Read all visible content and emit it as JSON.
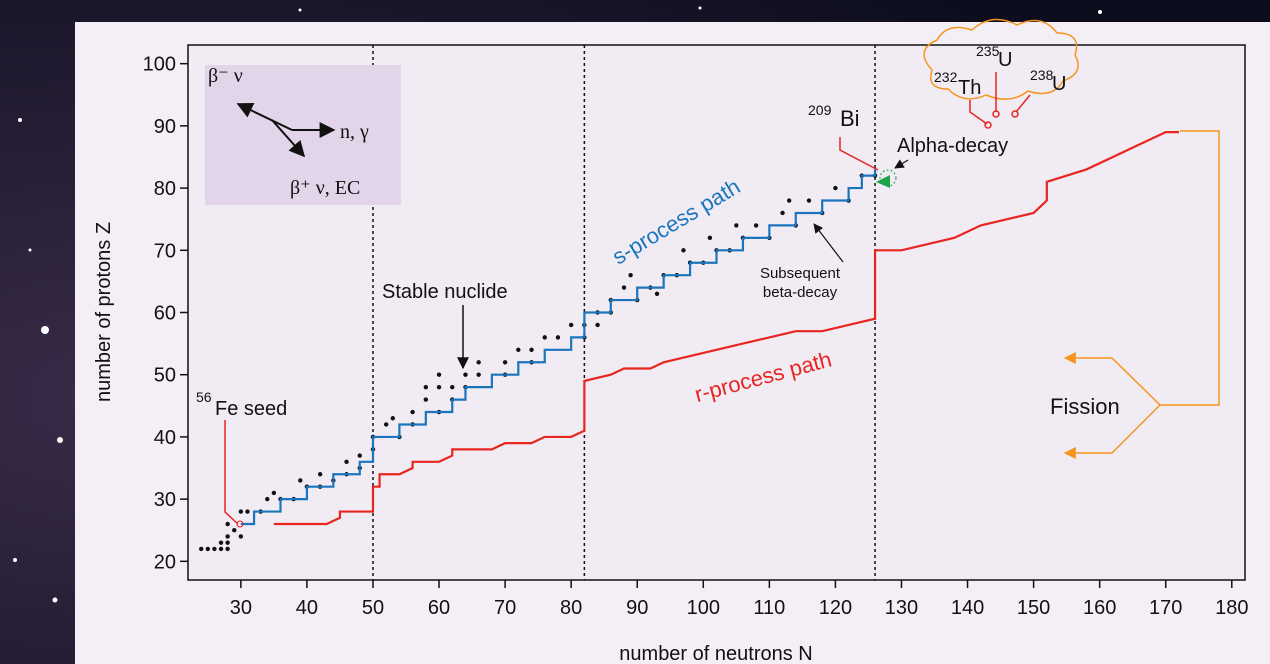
{
  "chart_data": {
    "type": "line",
    "x_label": "number of neutrons N",
    "y_label": "number of protons Z",
    "xlim": [
      22,
      182
    ],
    "ylim": [
      17,
      103
    ],
    "xticks": [
      30,
      40,
      50,
      60,
      70,
      80,
      90,
      100,
      110,
      120,
      130,
      140,
      150,
      160,
      170,
      180
    ],
    "yticks": [
      20,
      30,
      40,
      50,
      60,
      70,
      80,
      90,
      100
    ],
    "magic_numbers": [
      50,
      82,
      126
    ],
    "series": [
      {
        "name": "Stable nuclide",
        "type": "scatter",
        "color": "#111111",
        "x": [
          24,
          25,
          26,
          27,
          28,
          27,
          28,
          28,
          30,
          29,
          28,
          30,
          31,
          33,
          34,
          36,
          35,
          38,
          40,
          39,
          42,
          42,
          44,
          46,
          46,
          48,
          48,
          50,
          50,
          52,
          54,
          53,
          56,
          56,
          58,
          60,
          60,
          62,
          62,
          64,
          64,
          66,
          66,
          70,
          70,
          72,
          74,
          74,
          76,
          78,
          80,
          82,
          82,
          84,
          86,
          84,
          86,
          88,
          90,
          92,
          94,
          96,
          98,
          100,
          102,
          104,
          106,
          108,
          110,
          112,
          114,
          116,
          118,
          120,
          122,
          124,
          126,
          89,
          93,
          97,
          101,
          105,
          113,
          58,
          60
        ],
        "y": [
          22,
          22,
          22,
          22,
          22,
          23,
          23,
          24,
          24,
          25,
          26,
          28,
          28,
          28,
          30,
          30,
          31,
          30,
          32,
          33,
          32,
          34,
          33,
          34,
          36,
          35,
          37,
          38,
          40,
          42,
          40,
          43,
          44,
          42,
          46,
          44,
          48,
          46,
          48,
          48,
          50,
          50,
          52,
          50,
          52,
          54,
          52,
          54,
          56,
          56,
          58,
          58,
          56,
          60,
          60,
          58,
          62,
          64,
          62,
          64,
          66,
          66,
          68,
          68,
          70,
          70,
          72,
          74,
          72,
          76,
          74,
          78,
          76,
          80,
          78,
          82,
          82,
          66,
          63,
          70,
          72,
          74,
          78,
          48,
          50
        ]
      },
      {
        "name": "s-process path",
        "type": "line",
        "color": "#1b75bc",
        "x": [
          30,
          32,
          32,
          36,
          36,
          40,
          40,
          44,
          44,
          48,
          48,
          50,
          50,
          54,
          54,
          58,
          58,
          62,
          62,
          64,
          64,
          68,
          68,
          72,
          72,
          76,
          76,
          80,
          80,
          82,
          82,
          86,
          86,
          90,
          90,
          94,
          94,
          98,
          98,
          102,
          102,
          106,
          106,
          110,
          110,
          114,
          114,
          118,
          118,
          122,
          122,
          124,
          124,
          126,
          126
        ],
        "y": [
          26,
          26,
          28,
          28,
          30,
          30,
          32,
          32,
          34,
          34,
          36,
          36,
          40,
          40,
          42,
          42,
          44,
          44,
          46,
          46,
          48,
          48,
          50,
          50,
          52,
          52,
          54,
          54,
          56,
          56,
          60,
          60,
          62,
          62,
          64,
          64,
          66,
          66,
          68,
          68,
          70,
          70,
          72,
          72,
          74,
          74,
          76,
          76,
          78,
          78,
          80,
          80,
          82,
          82,
          83
        ]
      },
      {
        "name": "r-process path",
        "type": "line",
        "color": "#e8251f",
        "x": [
          35,
          43,
          45,
          45,
          50,
          50,
          51,
          51,
          54,
          56,
          56,
          60,
          62,
          62,
          66,
          68,
          70,
          74,
          76,
          80,
          82,
          82,
          86,
          88,
          92,
          94,
          98,
          102,
          106,
          110,
          114,
          118,
          122,
          126,
          126,
          130,
          134,
          138,
          142,
          146,
          150,
          152,
          152,
          158,
          162,
          166,
          170,
          172
        ],
        "y": [
          26,
          26,
          27,
          28,
          28,
          32,
          32,
          34,
          34,
          35,
          36,
          36,
          37,
          38,
          38,
          38,
          39,
          39,
          40,
          40,
          41,
          49,
          50,
          51,
          51,
          52,
          53,
          54,
          55,
          56,
          57,
          57,
          58,
          59,
          70,
          70,
          71,
          72,
          74,
          75,
          76,
          78,
          81,
          83,
          85,
          87,
          89,
          89
        ]
      }
    ],
    "annotations": {
      "inset_beta_minus": "β⁻ ν",
      "inset_capture": "n, γ",
      "inset_beta_plus": "β⁺ ν, EC",
      "fe_mass": "56",
      "fe_label": "Fe seed",
      "bi_mass": "209",
      "bi_label": "Bi",
      "alpha": "Alpha-decay",
      "beta_line1": "Subsequent",
      "beta_line2": "beta-decay",
      "fission": "Fission",
      "th_mass": "232",
      "th_label": "Th",
      "u235_mass": "235",
      "u235_label": "U",
      "u238_mass": "238",
      "u238_label": "U"
    }
  }
}
